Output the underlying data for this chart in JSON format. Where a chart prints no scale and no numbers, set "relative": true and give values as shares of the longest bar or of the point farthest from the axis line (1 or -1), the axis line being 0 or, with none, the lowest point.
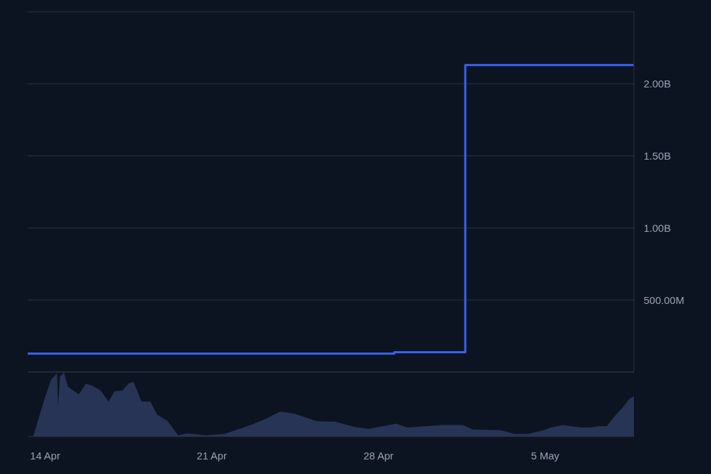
{
  "chart_data": [
    {
      "type": "step",
      "x": [
        "--04-13T06:30",
        "--04-28T16:00",
        "--05-01T15:30",
        "--05-08T17:30"
      ],
      "series": [
        {
          "color": "#3a62f6",
          "values": [
            128000000,
            137000000,
            2130000000,
            2130000000
          ]
        }
      ],
      "xlim": [
        "--04-13T06:30",
        "--05-08T17:30"
      ],
      "ylim": [
        0,
        2500000000
      ],
      "yticks": [
        {
          "value": 500000000,
          "label": "500.00M"
        },
        {
          "value": 1000000000,
          "label": "1.00B"
        },
        {
          "value": 1500000000,
          "label": "1.50B"
        },
        {
          "value": 2000000000,
          "label": "2.00B"
        }
      ],
      "grid": "y",
      "legend": false,
      "tick_labels": "y",
      "marker": "none"
    },
    {
      "type": "area",
      "relative": true,
      "x": [
        "--04-13T06:30",
        "--04-13T12:00",
        "--04-13T23:00",
        "--04-14T06:00",
        "--04-14T12:00",
        "--04-14T13:00",
        "--04-14T15:00",
        "--04-14T19:00",
        "--04-14T23:00",
        "--04-15T10:00",
        "--04-15T17:00",
        "--04-16T00:00",
        "--04-16T08:00",
        "--04-16T16:00",
        "--04-16T22:00",
        "--04-17T06:00",
        "--04-17T12:00",
        "--04-17T17:00",
        "--04-18T01:00",
        "--04-18T10:00",
        "--04-18T17:00",
        "--04-19T03:00",
        "--04-19T14:00",
        "--04-19T23:00",
        "--04-20T18:00",
        "--04-21T13:00",
        "--04-22T15:00",
        "--04-23T07:00",
        "--04-23T21:00",
        "--04-24T11:00",
        "--04-25T10:00",
        "--04-26T05:00",
        "--04-27T00:00",
        "--04-27T14:00",
        "--04-28T04:00",
        "--04-28T18:00",
        "--04-29T05:00",
        "--04-30T16:00",
        "--05-01T13:00",
        "--05-01T23:00",
        "--05-03T03:00",
        "--05-03T17:00",
        "--05-04T07:00",
        "--05-04T23:00",
        "--05-05T06:00",
        "--05-05T18:00",
        "--05-06T12:00",
        "--05-06T22:00",
        "--05-07T05:00",
        "--05-07T14:00",
        "--05-07T21:00",
        "--05-08T06:00",
        "--05-08T13:00",
        "--05-08T17:30"
      ],
      "series": [
        {
          "color": "#283456",
          "values": [
            0,
            0,
            0.57,
            0.89,
            0.99,
            0.48,
            0.94,
            1,
            0.78,
            0.66,
            0.83,
            0.79,
            0.72,
            0.55,
            0.71,
            0.72,
            0.83,
            0.86,
            0.55,
            0.55,
            0.34,
            0.25,
            0.02,
            0.05,
            0.02,
            0.04,
            0.18,
            0.28,
            0.39,
            0.36,
            0.24,
            0.23,
            0.15,
            0.12,
            0.16,
            0.2,
            0.14,
            0.18,
            0.18,
            0.11,
            0.1,
            0.04,
            0.04,
            0.1,
            0.14,
            0.18,
            0.14,
            0.14,
            0.16,
            0.16,
            0.3,
            0.45,
            0.59,
            0.63
          ]
        }
      ],
      "xlim": [
        "--04-13T06:30",
        "--05-08T17:30"
      ],
      "xticks": [
        {
          "value": "--04-14",
          "label": "14 Apr"
        },
        {
          "value": "--04-21",
          "label": "21 Apr"
        },
        {
          "value": "--04-28",
          "label": "28 Apr"
        },
        {
          "value": "--05-05",
          "label": "5 May"
        }
      ],
      "grid": false,
      "legend": false,
      "tick_labels": "x"
    }
  ]
}
